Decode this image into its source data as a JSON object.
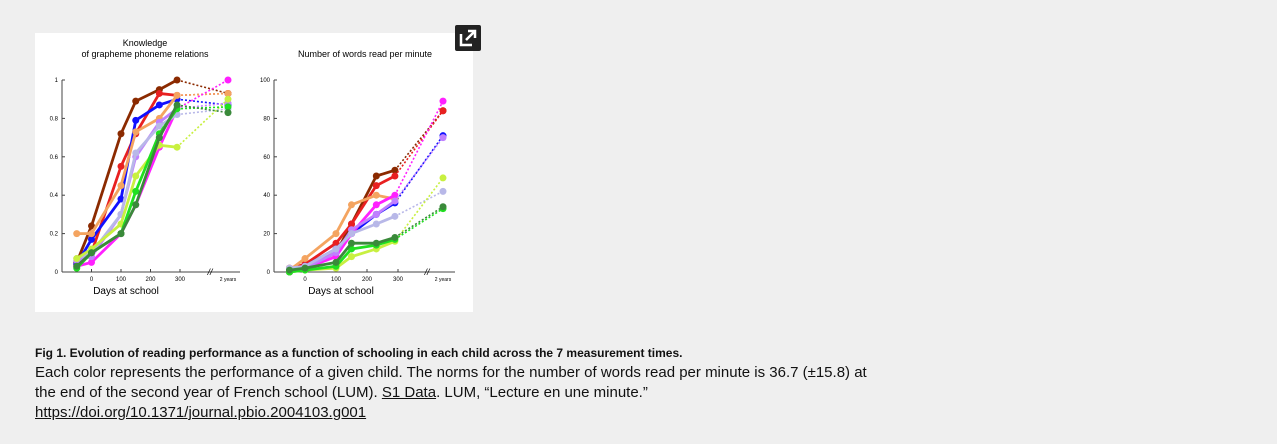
{
  "chart_data": [
    {
      "type": "line",
      "title": [
        "Knowledge",
        "of grapheme phoneme relations"
      ],
      "x_label": "Days at school",
      "axis_break": "//",
      "x": [
        -50,
        0,
        100,
        150,
        230,
        290,
        "2 years"
      ],
      "xlim": [
        -100,
        300
      ],
      "xticks": [
        0,
        100,
        200,
        300
      ],
      "ylim": [
        0,
        1
      ],
      "yticks": [
        0,
        0.2,
        0.4,
        0.6,
        0.8,
        1
      ],
      "series": [
        {
          "color": "#8b2a00",
          "values": [
            0.05,
            0.24,
            0.72,
            0.89,
            0.95,
            1.0,
            0.93
          ]
        },
        {
          "color": "#e82020",
          "values": [
            0.04,
            0.1,
            0.55,
            0.72,
            0.93,
            0.92,
            0.93
          ]
        },
        {
          "color": "#1010ff",
          "values": [
            0.04,
            0.17,
            0.38,
            0.79,
            0.87,
            0.9,
            0.87
          ]
        },
        {
          "color": "#f4a460",
          "values": [
            0.2,
            0.2,
            0.45,
            0.73,
            0.8,
            0.92,
            0.93
          ]
        },
        {
          "color": "#ff20ff",
          "values": [
            0.03,
            0.05,
            0.2,
            0.35,
            0.65,
            0.85,
            1.0
          ]
        },
        {
          "color": "#c080ff",
          "values": [
            0.06,
            0.08,
            0.3,
            0.6,
            0.78,
            0.85,
            0.88
          ]
        },
        {
          "color": "#b8b8e8",
          "values": [
            0.07,
            0.1,
            0.3,
            0.62,
            0.76,
            0.82,
            0.85
          ]
        },
        {
          "color": "#c8f040",
          "values": [
            0.07,
            0.12,
            0.25,
            0.5,
            0.66,
            0.65,
            0.9
          ]
        },
        {
          "color": "#20e020",
          "values": [
            0.02,
            0.1,
            0.2,
            0.42,
            0.72,
            0.85,
            0.86
          ]
        },
        {
          "color": "#3a8a3a",
          "values": [
            0.03,
            0.1,
            0.2,
            0.35,
            0.7,
            0.87,
            0.83
          ]
        }
      ]
    },
    {
      "type": "line",
      "title": [
        "Number of words read per minute"
      ],
      "x_label": "Days at school",
      "axis_break": "//",
      "x": [
        -50,
        0,
        100,
        150,
        230,
        290,
        "2 years"
      ],
      "xlim": [
        -100,
        300
      ],
      "xticks": [
        0,
        100,
        200,
        300
      ],
      "ylim": [
        0,
        100
      ],
      "yticks": [
        0,
        20,
        40,
        60,
        80,
        100
      ],
      "series": [
        {
          "color": "#8b2a00",
          "values": [
            0,
            2,
            10,
            25,
            50,
            53,
            84
          ]
        },
        {
          "color": "#e82020",
          "values": [
            2,
            4,
            15,
            25,
            45,
            50,
            84
          ]
        },
        {
          "color": "#1010ff",
          "values": [
            0,
            3,
            12,
            20,
            30,
            36,
            71
          ]
        },
        {
          "color": "#f4a460",
          "values": [
            1,
            7,
            20,
            35,
            40,
            38,
            null
          ]
        },
        {
          "color": "#ff20ff",
          "values": [
            1,
            2,
            8,
            20,
            35,
            40,
            89
          ]
        },
        {
          "color": "#c080ff",
          "values": [
            1,
            2,
            10,
            22,
            30,
            37,
            70
          ]
        },
        {
          "color": "#b8b8e8",
          "values": [
            2,
            3,
            12,
            20,
            25,
            29,
            42
          ]
        },
        {
          "color": "#c8f040",
          "values": [
            0,
            1,
            2,
            8,
            12,
            16,
            49
          ]
        },
        {
          "color": "#20e020",
          "values": [
            0,
            1,
            3,
            12,
            14,
            17,
            33
          ]
        },
        {
          "color": "#3a8a3a",
          "values": [
            1,
            2,
            5,
            15,
            15,
            18,
            34
          ]
        }
      ]
    }
  ],
  "caption": {
    "title": "Fig 1. Evolution of reading performance as a function of schooling in each child across the 7 measurement times.",
    "line1": "Each color represents the performance of a given child. The norms for the number of words read per minute is 36.7 (±15.8) at",
    "line2": "the end of the second year of French school (LUM).",
    "link": "S1 Data",
    "line2_end": ". LUM, “Lecture en une minute.”",
    "doi": "https://doi.org/10.1371/journal.pbio.2004103.g001"
  }
}
